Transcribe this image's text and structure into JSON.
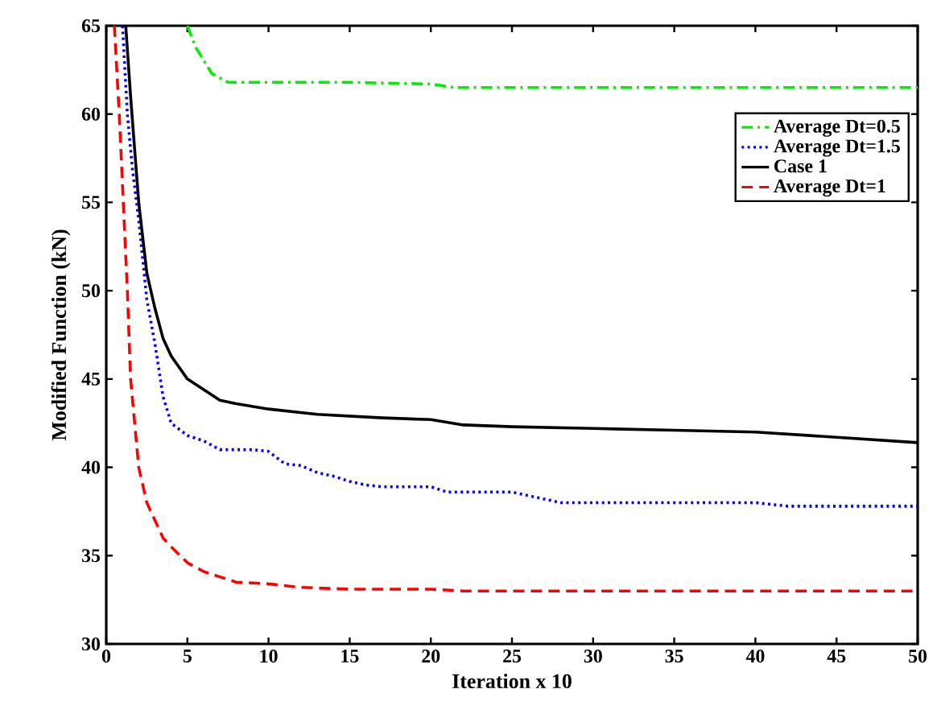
{
  "chart_data": {
    "type": "line",
    "xlabel": "Iteration x 10",
    "ylabel": "Modified Function (kN)",
    "xlim": [
      0,
      50
    ],
    "ylim": [
      30,
      65
    ],
    "xticks": [
      0,
      5,
      10,
      15,
      20,
      25,
      30,
      35,
      40,
      45,
      50
    ],
    "yticks": [
      30,
      35,
      40,
      45,
      50,
      55,
      60,
      65
    ],
    "legend": "top right",
    "grid": false,
    "marker": "none",
    "series": [
      {
        "name": "Average Dt=0.5",
        "color": "#00ee00",
        "line_style": "dashdot",
        "x": [
          5,
          5.5,
          6.5,
          7.5,
          10,
          15,
          20,
          21.5,
          30,
          40,
          50
        ],
        "values": [
          65,
          63.8,
          62.3,
          61.8,
          61.8,
          61.8,
          61.7,
          61.5,
          61.5,
          61.5,
          61.5
        ]
      },
      {
        "name": "Average Dt=1.5",
        "color": "#0000ff",
        "line_style": "dotted",
        "x": [
          1,
          1.3,
          1.6,
          2,
          2.5,
          3,
          3.5,
          4,
          5,
          6,
          7,
          8,
          9,
          10,
          11,
          12,
          13,
          14,
          15,
          16,
          17,
          20,
          21,
          25,
          26,
          28,
          35,
          40,
          41,
          42,
          50
        ],
        "values": [
          65,
          60,
          57,
          54,
          49.5,
          47,
          44,
          42.5,
          41.8,
          41.5,
          41,
          41,
          41,
          40.9,
          40.2,
          40.1,
          39.7,
          39.5,
          39.2,
          39,
          38.9,
          38.9,
          38.6,
          38.6,
          38.4,
          38,
          38,
          38,
          37.9,
          37.8,
          37.8
        ]
      },
      {
        "name": "Case 1",
        "color": "#000000",
        "line_style": "solid",
        "x": [
          1.2,
          1.5,
          2,
          2.5,
          3,
          3.5,
          4,
          5,
          6,
          7,
          8,
          10,
          13,
          17,
          20,
          22,
          25,
          30,
          35,
          40,
          45,
          50
        ],
        "values": [
          65,
          61,
          55,
          51,
          49,
          47.3,
          46.3,
          45,
          44.4,
          43.8,
          43.6,
          43.3,
          43,
          42.8,
          42.7,
          42.4,
          42.3,
          42.2,
          42.1,
          42,
          41.7,
          41.4
        ]
      },
      {
        "name": "Average Dt=1",
        "color": "#ff0000",
        "line_style": "dashed",
        "x": [
          0.5,
          0.8,
          1,
          1.3,
          1.5,
          2,
          2.5,
          3,
          3.5,
          4,
          5,
          6,
          7,
          8,
          10,
          12,
          15,
          20,
          22,
          30,
          50
        ],
        "values": [
          65,
          60,
          56,
          50,
          45,
          40,
          38,
          37,
          36,
          35.5,
          34.6,
          34.1,
          33.8,
          33.5,
          33.4,
          33.2,
          33.1,
          33.1,
          33,
          33,
          33
        ]
      }
    ]
  }
}
